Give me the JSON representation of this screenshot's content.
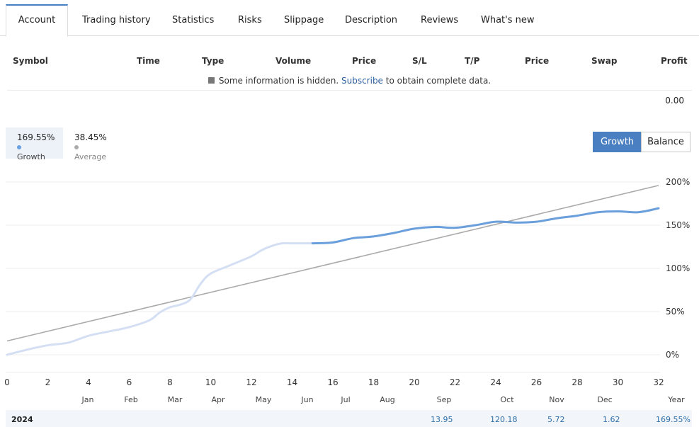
{
  "tabs": [
    {
      "label": "Account",
      "active": true
    },
    {
      "label": "Trading history"
    },
    {
      "label": "Statistics"
    },
    {
      "label": "Risks"
    },
    {
      "label": "Slippage"
    },
    {
      "label": "Description"
    },
    {
      "label": "Reviews"
    },
    {
      "label": "What's new"
    }
  ],
  "positions_table": {
    "headers": [
      "Symbol",
      "Time",
      "Type",
      "Volume",
      "Price",
      "S/L",
      "T/P",
      "Price",
      "Swap",
      "Profit"
    ],
    "notice_prefix": "Some information is hidden.",
    "notice_link": "Subscribe",
    "notice_suffix": "to obtain complete data.",
    "total_profit": "0.00"
  },
  "legend": [
    {
      "value": "169.55%",
      "label": "Growth",
      "color": "#6aa0e0"
    },
    {
      "value": "38.45%",
      "label": "Average",
      "color": "#aaaaaa"
    }
  ],
  "view_toggle": {
    "growth": "Growth",
    "balance": "Balance",
    "active": "growth"
  },
  "chart_data": {
    "type": "line",
    "x_ticks": [
      "0",
      "2",
      "4",
      "6",
      "8",
      "10",
      "12",
      "14",
      "16",
      "18",
      "20",
      "22",
      "24",
      "26",
      "28",
      "30",
      "32"
    ],
    "y_ticks": [
      "200%",
      "150%",
      "100%",
      "50%",
      "0%"
    ],
    "months": [
      "Jan",
      "Feb",
      "Mar",
      "Apr",
      "May",
      "Jun",
      "Jul",
      "Aug",
      "Sep",
      "Oct",
      "Nov",
      "Dec"
    ],
    "year_label": "Year",
    "xlim": [
      0,
      32
    ],
    "ylim": [
      -20,
      220
    ],
    "colors": {
      "growth_past": "#d4dff3",
      "growth": "#6a9fdc",
      "average": "#aaaaaa"
    },
    "series": [
      {
        "name": "Growth",
        "x": [
          0,
          1,
          2,
          3,
          4,
          5,
          6,
          7,
          7.5,
          8,
          8.5,
          9,
          9.5,
          10,
          11,
          12,
          12.5,
          13,
          13.5,
          14,
          14.8,
          15,
          16,
          17,
          18,
          19,
          20,
          21,
          22,
          23,
          24,
          25,
          26,
          27,
          28,
          29,
          30,
          31,
          32
        ],
        "y": [
          0,
          6,
          11,
          14,
          22,
          27,
          32,
          40,
          49,
          55,
          58,
          64,
          82,
          94,
          104,
          114,
          121,
          126,
          129,
          129,
          129,
          129,
          130,
          135,
          137,
          141,
          146,
          148,
          147,
          150,
          154,
          153,
          154,
          158,
          161,
          165,
          166,
          165,
          169.55
        ],
        "highlight_from_x": 15
      },
      {
        "name": "Average",
        "x": [
          0,
          32
        ],
        "y": [
          16,
          196
        ]
      }
    ]
  },
  "year_row": {
    "year": "2024",
    "values": [
      "13.95",
      "120.18",
      "5.72",
      "1.62",
      "169.55%"
    ]
  }
}
